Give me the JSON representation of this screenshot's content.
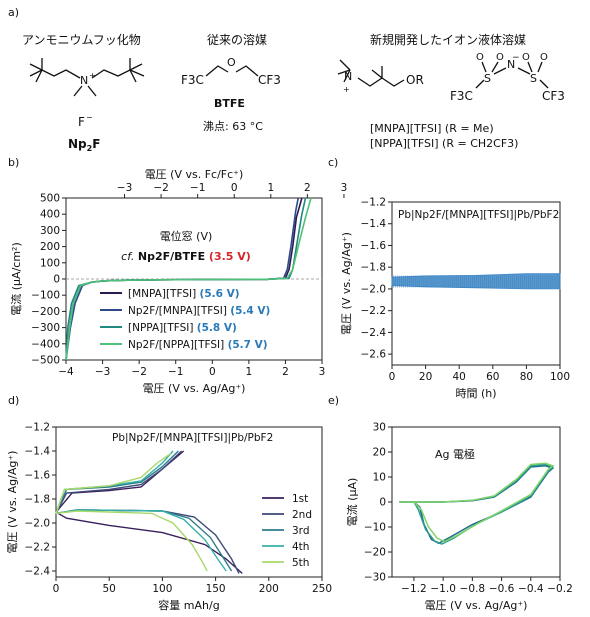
{
  "panel_a": {
    "label": "a)",
    "headers": [
      "アンモニウムフッ化物",
      "従来の溶媒",
      "新規開発したイオン液体溶媒"
    ],
    "npf": {
      "anion": "F",
      "name_main": "Np",
      "name_sub": "2",
      "name_end": "F"
    },
    "btfe": {
      "name": "BTFE",
      "bp": "沸点: 63 °C",
      "left": "F3C",
      "right": "CF3",
      "o": "O"
    },
    "mnpa": {
      "or": "OR",
      "left_cf3": "F3C",
      "right_cf3": "CF3",
      "s": "S",
      "n": "N",
      "o": "O",
      "line1": "[MNPA][TFSI] (R = Me)",
      "line2": "[NPPA][TFSI] (R = CH2CF3)"
    }
  },
  "chart_data": [
    {
      "panel": "b)",
      "type": "line",
      "xlabel": "電圧 (V vs. Ag/Ag⁺)",
      "x2label": "電圧 (V vs. Fc/Fc⁺)",
      "ylabel": "電流 (μA/cm²)",
      "xlim": [
        -4,
        3
      ],
      "ylim": [
        -500,
        500
      ],
      "xticks": [
        -4,
        -3,
        -2,
        -1,
        0,
        1,
        2,
        3
      ],
      "yticks": [
        -500,
        -400,
        -300,
        -200,
        -100,
        0,
        100,
        200,
        300,
        400,
        500
      ],
      "x2ticks": [
        -3,
        -2,
        -1,
        0,
        1,
        2,
        3
      ],
      "annotation_title": "電位窓 (V)",
      "annotation_cf": "cf.",
      "annotation_label": "Np2F/BTFE",
      "annotation_value": "(3.5 V)",
      "legend_names": [
        "[MNPA][TFSI]",
        "Np2F/[MNPA][TFSI]",
        "[NPPA][TFSI]",
        "Np2F/[NPPA][TFSI]"
      ],
      "legend_values": [
        "(5.6 V)",
        "(5.4 V)",
        "(5.8 V)",
        "(5.7 V)"
      ],
      "colors": [
        "#2b1a4f",
        "#2e4a8a",
        "#1f8a80",
        "#4fc07a"
      ],
      "series": [
        {
          "values_x": [
            -4.0,
            -3.9,
            -3.8,
            -3.6,
            -3.3,
            -3.0,
            -2.5,
            -1.5,
            0,
            1.5,
            2.0,
            2.1,
            2.2,
            2.3,
            2.45
          ],
          "values_y": [
            -500,
            -300,
            -150,
            -40,
            -20,
            -12,
            -8,
            -5,
            -3,
            -2,
            5,
            60,
            200,
            380,
            500
          ]
        },
        {
          "values_x": [
            -4.0,
            -3.88,
            -3.75,
            -3.55,
            -3.3,
            -3.0,
            -2.5,
            -1.5,
            0,
            1.5,
            1.95,
            2.05,
            2.15,
            2.28,
            2.35
          ],
          "values_y": [
            -500,
            -300,
            -150,
            -40,
            -20,
            -12,
            -8,
            -5,
            -3,
            -2,
            5,
            60,
            200,
            420,
            500
          ]
        },
        {
          "values_x": [
            -4.0,
            -3.95,
            -3.85,
            -3.65,
            -3.3,
            -3.0,
            -2.5,
            -1.5,
            0,
            1.5,
            2.1,
            2.2,
            2.3,
            2.45,
            2.55
          ],
          "values_y": [
            -500,
            -300,
            -150,
            -40,
            -20,
            -12,
            -8,
            -5,
            -3,
            -2,
            5,
            60,
            200,
            400,
            500
          ]
        },
        {
          "values_x": [
            -4.0,
            -3.9,
            -3.8,
            -3.6,
            -3.3,
            -3.0,
            -2.5,
            -1.5,
            0,
            1.5,
            2.05,
            2.2,
            2.35,
            2.55,
            2.7
          ],
          "values_y": [
            -500,
            -300,
            -150,
            -40,
            -20,
            -12,
            -8,
            -5,
            -3,
            -2,
            5,
            60,
            200,
            380,
            500
          ]
        }
      ]
    },
    {
      "panel": "c)",
      "type": "line",
      "title": "Pb|Np2F/[MNPA][TFSI]|Pb/PbF2",
      "xlabel": "時間 (h)",
      "ylabel": "電圧 (V vs. Ag/Ag⁺)",
      "xlim": [
        0,
        100
      ],
      "ylim": [
        -2.7,
        -1.2
      ],
      "xticks": [
        0,
        20,
        40,
        60,
        80,
        100
      ],
      "yticks": [
        -2.6,
        -2.4,
        -2.2,
        -2.0,
        -1.8,
        -1.6,
        -1.4,
        -1.2
      ],
      "band_upper": [
        [
          0,
          -1.89
        ],
        [
          20,
          -1.88
        ],
        [
          50,
          -1.875
        ],
        [
          80,
          -1.86
        ],
        [
          100,
          -1.86
        ]
      ],
      "band_lower": [
        [
          0,
          -1.97
        ],
        [
          20,
          -1.98
        ],
        [
          50,
          -1.99
        ],
        [
          80,
          -2.0
        ],
        [
          100,
          -2.0
        ]
      ],
      "color": "#3c87c8"
    },
    {
      "panel": "d)",
      "type": "line",
      "title": "Pb|Np2F/[MNPA][TFSI]|Pb/PbF2",
      "xlabel": "容量 mAh/g",
      "ylabel": "電圧 (V vs. Ag/Ag⁺)",
      "xlim": [
        0,
        250
      ],
      "ylim": [
        -2.45,
        -1.2
      ],
      "xticks": [
        0,
        50,
        100,
        150,
        200,
        250
      ],
      "yticks": [
        -2.4,
        -2.2,
        -2.0,
        -1.8,
        -1.6,
        -1.4,
        -1.2
      ],
      "legend": [
        "1st",
        "2nd",
        "3rd",
        "4th",
        "5th"
      ],
      "colors": [
        "#3b1f5c",
        "#3d4a7a",
        "#2f7d8c",
        "#34b0a8",
        "#a8d96a"
      ],
      "series": [
        {
          "name": "1st",
          "discharge": [
            [
              0,
              -1.91
            ],
            [
              10,
              -1.96
            ],
            [
              50,
              -2.02
            ],
            [
              100,
              -2.08
            ],
            [
              140,
              -2.18
            ],
            [
              160,
              -2.3
            ],
            [
              175,
              -2.42
            ]
          ],
          "charge": [
            [
              0,
              -1.91
            ],
            [
              15,
              -1.75
            ],
            [
              50,
              -1.73
            ],
            [
              80,
              -1.7
            ],
            [
              100,
              -1.55
            ],
            [
              120,
              -1.4
            ]
          ]
        },
        {
          "name": "2nd",
          "discharge": [
            [
              0,
              -1.92
            ],
            [
              20,
              -1.89
            ],
            [
              100,
              -1.9
            ],
            [
              130,
              -1.95
            ],
            [
              150,
              -2.1
            ],
            [
              165,
              -2.3
            ],
            [
              172,
              -2.42
            ]
          ],
          "charge": [
            [
              0,
              -1.92
            ],
            [
              10,
              -1.75
            ],
            [
              50,
              -1.72
            ],
            [
              80,
              -1.68
            ],
            [
              100,
              -1.55
            ],
            [
              118,
              -1.4
            ]
          ]
        },
        {
          "name": "3rd",
          "discharge": [
            [
              0,
              -1.92
            ],
            [
              20,
              -1.89
            ],
            [
              100,
              -1.9
            ],
            [
              125,
              -1.96
            ],
            [
              145,
              -2.12
            ],
            [
              158,
              -2.3
            ],
            [
              165,
              -2.4
            ]
          ],
          "charge": [
            [
              0,
              -1.92
            ],
            [
              10,
              -1.72
            ],
            [
              50,
              -1.7
            ],
            [
              80,
              -1.66
            ],
            [
              100,
              -1.53
            ],
            [
              115,
              -1.4
            ]
          ]
        },
        {
          "name": "4th",
          "discharge": [
            [
              0,
              -1.92
            ],
            [
              20,
              -1.89
            ],
            [
              100,
              -1.9
            ],
            [
              120,
              -1.97
            ],
            [
              140,
              -2.14
            ],
            [
              152,
              -2.3
            ],
            [
              160,
              -2.4
            ]
          ],
          "charge": [
            [
              0,
              -1.92
            ],
            [
              8,
              -1.72
            ],
            [
              50,
              -1.69
            ],
            [
              80,
              -1.65
            ],
            [
              100,
              -1.5
            ],
            [
              110,
              -1.4
            ]
          ]
        },
        {
          "name": "5th",
          "discharge": [
            [
              0,
              -1.92
            ],
            [
              20,
              -1.9
            ],
            [
              90,
              -1.92
            ],
            [
              110,
              -2.0
            ],
            [
              128,
              -2.18
            ],
            [
              138,
              -2.33
            ],
            [
              142,
              -2.4
            ]
          ],
          "charge": [
            [
              0,
              -1.92
            ],
            [
              8,
              -1.72
            ],
            [
              50,
              -1.69
            ],
            [
              80,
              -1.62
            ],
            [
              95,
              -1.5
            ],
            [
              108,
              -1.42
            ]
          ]
        }
      ]
    },
    {
      "panel": "e)",
      "type": "line",
      "title": "Ag 電極",
      "xlabel": "電圧 (V vs. Ag/Ag⁺)",
      "ylabel": "電流 (μA)",
      "xlim": [
        -1.35,
        -0.2
      ],
      "ylim": [
        -30,
        30
      ],
      "xticks": [
        -1.2,
        -1.0,
        -0.8,
        -0.6,
        -0.4,
        -0.2
      ],
      "yticks": [
        -30,
        -20,
        -10,
        0,
        10,
        20,
        30
      ],
      "colors": [
        "#1f6b8a",
        "#2a9d8f",
        "#7fd36a"
      ],
      "series": [
        {
          "loop": [
            [
              -1.3,
              0
            ],
            [
              -1.2,
              0
            ],
            [
              -1.16,
              -2
            ],
            [
              -1.13,
              -9
            ],
            [
              -1.08,
              -15
            ],
            [
              -1.03,
              -16.5
            ],
            [
              -0.95,
              -14
            ],
            [
              -0.8,
              -9
            ],
            [
              -0.6,
              -4
            ],
            [
              -0.4,
              2
            ],
            [
              -0.28,
              12
            ],
            [
              -0.25,
              13.5
            ],
            [
              -0.3,
              14.5
            ],
            [
              -0.4,
              14
            ],
            [
              -0.5,
              8
            ],
            [
              -0.65,
              2
            ],
            [
              -0.8,
              0.5
            ],
            [
              -1.0,
              0
            ],
            [
              -1.3,
              0
            ]
          ]
        },
        {
          "loop": [
            [
              -1.3,
              0
            ],
            [
              -1.2,
              0
            ],
            [
              -1.17,
              -3
            ],
            [
              -1.12,
              -11
            ],
            [
              -1.06,
              -15.5
            ],
            [
              -1.01,
              -16.8
            ],
            [
              -0.93,
              -14.5
            ],
            [
              -0.78,
              -9
            ],
            [
              -0.6,
              -4
            ],
            [
              -0.4,
              2.5
            ],
            [
              -0.28,
              12.5
            ],
            [
              -0.25,
              14
            ],
            [
              -0.3,
              15
            ],
            [
              -0.4,
              14.5
            ],
            [
              -0.5,
              8.5
            ],
            [
              -0.65,
              2.2
            ],
            [
              -0.8,
              0.6
            ],
            [
              -1.0,
              0
            ],
            [
              -1.3,
              0
            ]
          ]
        },
        {
          "loop": [
            [
              -1.3,
              0
            ],
            [
              -1.2,
              0
            ],
            [
              -1.15,
              -3
            ],
            [
              -1.1,
              -10
            ],
            [
              -1.04,
              -14.5
            ],
            [
              -0.99,
              -15.8
            ],
            [
              -0.91,
              -13.5
            ],
            [
              -0.76,
              -8.5
            ],
            [
              -0.6,
              -3.5
            ],
            [
              -0.4,
              3
            ],
            [
              -0.28,
              13
            ],
            [
              -0.25,
              14.5
            ],
            [
              -0.3,
              15.5
            ],
            [
              -0.4,
              15
            ],
            [
              -0.5,
              9
            ],
            [
              -0.65,
              2.5
            ],
            [
              -0.8,
              0.7
            ],
            [
              -1.0,
              0
            ],
            [
              -1.3,
              0
            ]
          ]
        }
      ]
    }
  ]
}
